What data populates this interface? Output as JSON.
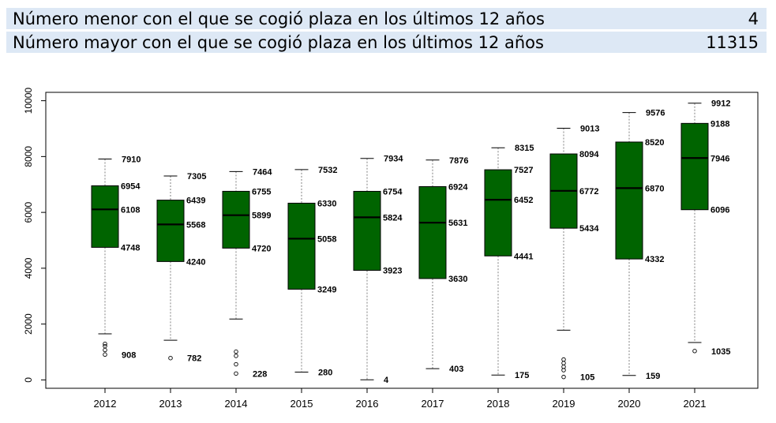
{
  "stats": {
    "min_label": "Número menor con el que se cogió plaza en los últimos 12 años",
    "min_value": "4",
    "max_label": "Número mayor con el que se cogió plaza en los últimos 12 años",
    "max_value": "11315"
  },
  "colors": {
    "box_fill": "#006400",
    "box_stroke": "#000000",
    "whisker": "#808080"
  },
  "chart_data": {
    "type": "boxplot",
    "ylim": [
      -300,
      10300
    ],
    "yticks": [
      0,
      2000,
      4000,
      6000,
      8000,
      10000
    ],
    "categories": [
      "2012",
      "2013",
      "2014",
      "2015",
      "2016",
      "2017",
      "2018",
      "2019",
      "2020",
      "2021"
    ],
    "boxes": [
      {
        "year": "2012",
        "upper_whisker": 7910,
        "q3": 6954,
        "median": 6108,
        "q1": 4748,
        "lower_whisker": 1650,
        "min": 908,
        "outliers": [
          1290,
          1210,
          1070,
          908
        ]
      },
      {
        "year": "2013",
        "upper_whisker": 7305,
        "q3": 6439,
        "median": 5568,
        "q1": 4240,
        "lower_whisker": 1420,
        "min": 782,
        "outliers": [
          782
        ]
      },
      {
        "year": "2014",
        "upper_whisker": 7464,
        "q3": 6755,
        "median": 5899,
        "q1": 4720,
        "lower_whisker": 2180,
        "min": 228,
        "outliers": [
          1010,
          860,
          560,
          228
        ]
      },
      {
        "year": "2015",
        "upper_whisker": 7532,
        "q3": 6330,
        "median": 5058,
        "q1": 3249,
        "lower_whisker": 280,
        "min": 280,
        "outliers": []
      },
      {
        "year": "2016",
        "upper_whisker": 7934,
        "q3": 6754,
        "median": 5824,
        "q1": 3923,
        "lower_whisker": 4,
        "min": 4,
        "outliers": []
      },
      {
        "year": "2017",
        "upper_whisker": 7876,
        "q3": 6924,
        "median": 5631,
        "q1": 3630,
        "lower_whisker": 403,
        "min": 403,
        "outliers": []
      },
      {
        "year": "2018",
        "upper_whisker": 8315,
        "q3": 7527,
        "median": 6452,
        "q1": 4441,
        "lower_whisker": 175,
        "min": 175,
        "outliers": []
      },
      {
        "year": "2019",
        "upper_whisker": 9013,
        "q3": 8094,
        "median": 6772,
        "q1": 5434,
        "lower_whisker": 1780,
        "min": 105,
        "outliers": [
          730,
          600,
          470,
          350,
          105
        ]
      },
      {
        "year": "2020",
        "upper_whisker": 9576,
        "q3": 8520,
        "median": 6870,
        "q1": 4332,
        "lower_whisker": 159,
        "min": 159,
        "outliers": []
      },
      {
        "year": "2021",
        "upper_whisker": 9912,
        "q3": 9188,
        "median": 7946,
        "q1": 6096,
        "lower_whisker": 1340,
        "min": 1035,
        "outliers": [
          1035
        ]
      }
    ],
    "labels": [
      {
        "year": "2012",
        "texts": [
          "7910",
          "6954",
          "6108",
          "4748",
          "908"
        ]
      },
      {
        "year": "2013",
        "texts": [
          "7305",
          "6439",
          "5568",
          "4240",
          "782"
        ]
      },
      {
        "year": "2014",
        "texts": [
          "7464",
          "6755",
          "5899",
          "4720",
          "228"
        ]
      },
      {
        "year": "2015",
        "texts": [
          "7532",
          "6330",
          "5058",
          "3249",
          "280"
        ]
      },
      {
        "year": "2016",
        "texts": [
          "7934",
          "6754",
          "5824",
          "3923",
          "4"
        ]
      },
      {
        "year": "2017",
        "texts": [
          "7876",
          "6924",
          "5631",
          "3630",
          "403"
        ]
      },
      {
        "year": "2018",
        "texts": [
          "8315",
          "7527",
          "6452",
          "4441",
          "175"
        ]
      },
      {
        "year": "2019",
        "texts": [
          "9013",
          "8094",
          "6772",
          "5434",
          "105"
        ]
      },
      {
        "year": "2020",
        "texts": [
          "9576",
          "8520",
          "6870",
          "4332",
          "159"
        ]
      },
      {
        "year": "2021",
        "texts": [
          "9912",
          "9188",
          "7946",
          "6096",
          "1035"
        ]
      }
    ]
  }
}
